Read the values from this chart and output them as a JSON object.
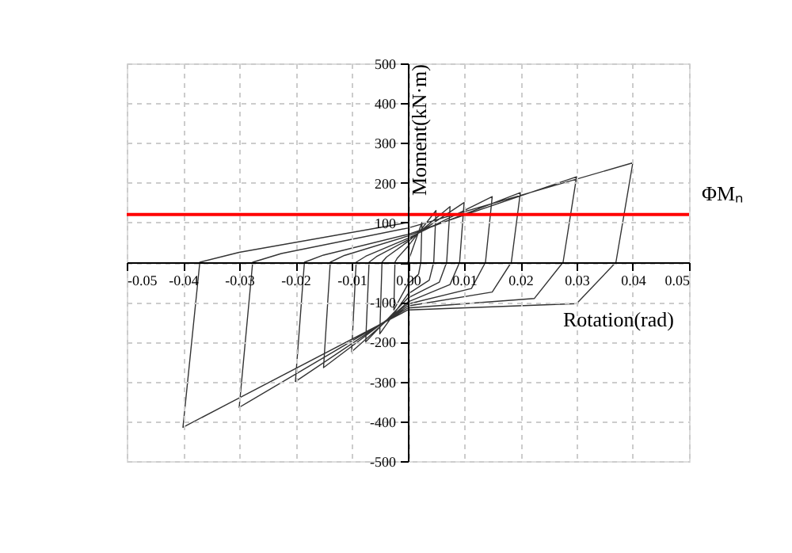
{
  "chart_data": {
    "type": "line",
    "xlabel": "Rotation(rad)",
    "ylabel": "Moment(kN·m)",
    "xlim": [
      -0.05,
      0.05
    ],
    "ylim": [
      -500,
      500
    ],
    "xticks": [
      {
        "value": -0.05,
        "label": "-0.05"
      },
      {
        "value": -0.04,
        "label": "-0.04"
      },
      {
        "value": -0.03,
        "label": "-0.03"
      },
      {
        "value": -0.02,
        "label": "-0.02"
      },
      {
        "value": -0.01,
        "label": "-0.01"
      },
      {
        "value": 0,
        "label": "0.00"
      },
      {
        "value": 0.01,
        "label": "0.01"
      },
      {
        "value": 0.02,
        "label": "0.02"
      },
      {
        "value": 0.03,
        "label": "0.03"
      },
      {
        "value": 0.04,
        "label": "0.04"
      },
      {
        "value": 0.05,
        "label": "0.05"
      }
    ],
    "yticks": [
      {
        "value": -500,
        "label": "-500"
      },
      {
        "value": -400,
        "label": "-400"
      },
      {
        "value": -300,
        "label": "-300"
      },
      {
        "value": -200,
        "label": "-200"
      },
      {
        "value": -100,
        "label": "-100"
      },
      {
        "value": 0,
        "label": null
      },
      {
        "value": 100,
        "label": "100"
      },
      {
        "value": 200,
        "label": "200"
      },
      {
        "value": 300,
        "label": "300"
      },
      {
        "value": 400,
        "label": "400"
      },
      {
        "value": 500,
        "label": "500"
      }
    ],
    "grid": true,
    "marker": "none",
    "line_style": "solid",
    "ref_lines": [
      {
        "axis": "y",
        "value": 120,
        "label": "ΦMₙ",
        "color": "#ff0000"
      }
    ],
    "series": [
      {
        "color": "#333333",
        "x": [
          0,
          0.0025,
          0.0023,
          0.0019,
          0,
          -0.0025,
          -0.0023,
          -0.0019,
          0,
          0.005,
          0.0046,
          0.0038,
          0,
          -0.005,
          -0.0046,
          -0.0038,
          0,
          0.0075,
          0.0069,
          0.0056,
          0,
          -0.0075,
          -0.0069,
          -0.0056,
          0,
          0.01,
          0.0092,
          0.0075,
          0,
          -0.01,
          -0.0092,
          -0.0075,
          0,
          0.015,
          0.0138,
          0.0113,
          0,
          -0.015,
          -0.0138,
          -0.0113,
          0,
          0.02,
          0.0184,
          0.015,
          0,
          -0.02,
          -0.0184,
          -0.015,
          0,
          0.03,
          0.0276,
          0.0225,
          0,
          -0.03,
          -0.0276,
          -0.0225,
          0,
          0.04,
          0.037,
          0.03,
          0,
          -0.04,
          -0.037,
          -0.03,
          0
        ],
        "values": [
          0,
          100,
          0,
          -30,
          -55,
          -120,
          0,
          10,
          40,
          130,
          0,
          -45,
          -80,
          -180,
          0,
          13,
          52,
          140,
          0,
          -50,
          -90,
          -200,
          0,
          14,
          56,
          150,
          0,
          -56,
          -100,
          -225,
          0,
          15,
          60,
          165,
          0,
          -66,
          -105,
          -265,
          0,
          17,
          66,
          175,
          0,
          -75,
          -110,
          -300,
          0,
          18,
          70,
          215,
          0,
          -91,
          -115,
          -365,
          0,
          22,
          86,
          250,
          0,
          -104,
          -120,
          -415,
          0,
          25,
          100
        ]
      }
    ]
  }
}
